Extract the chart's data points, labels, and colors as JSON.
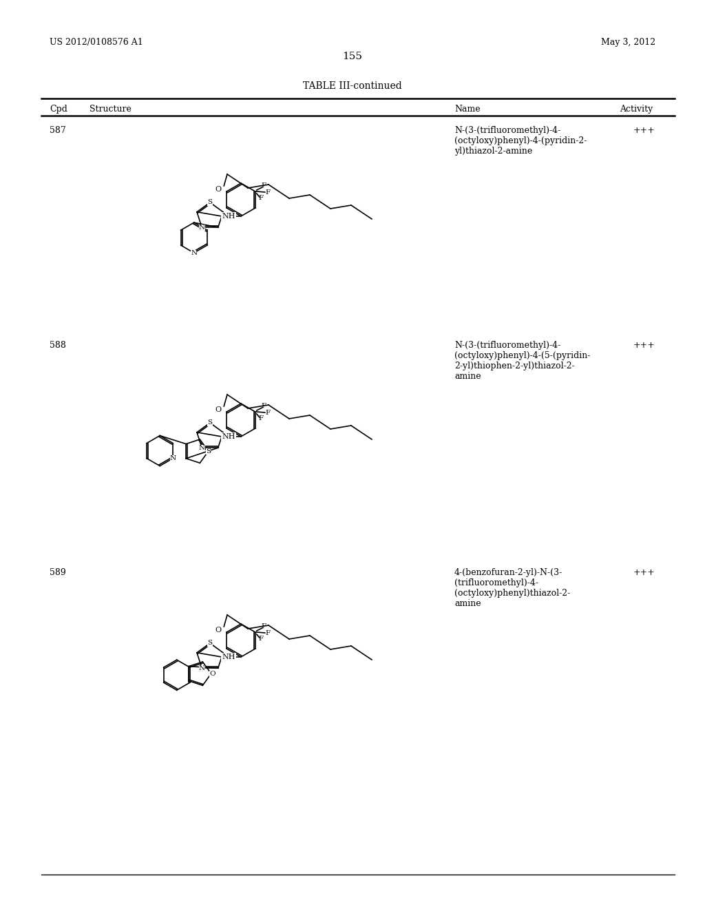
{
  "background_color": "#ffffff",
  "page_number": "155",
  "header_left": "US 2012/0108576 A1",
  "header_right": "May 3, 2012",
  "table_title": "TABLE III-continued",
  "col_headers": [
    "Cpd",
    "Structure",
    "Name",
    "Activity"
  ],
  "compounds": [
    {
      "id": "587",
      "name": "N-(3-(trifluoromethyl)-4-\n(octyloxy)phenyl)-4-(pyridin-2-\nyl)thiazol-2-amine",
      "activity": "+++"
    },
    {
      "id": "588",
      "name": "N-(3-(trifluoromethyl)-4-\n(octyloxy)phenyl)-4-(5-(pyridin-\n2-yl)thiophen-2-yl)thiazol-2-\namine",
      "activity": "+++"
    },
    {
      "id": "589",
      "name": "4-(benzofuran-2-yl)-N-(3-\n(trifluoromethyl)-4-\n(octyloxy)phenyl)thiazol-2-\namine",
      "activity": "+++"
    }
  ],
  "font_size_header": 9,
  "font_size_body": 9,
  "font_size_page": 11,
  "font_size_title": 10,
  "line_color": "#000000",
  "text_color": "#000000"
}
